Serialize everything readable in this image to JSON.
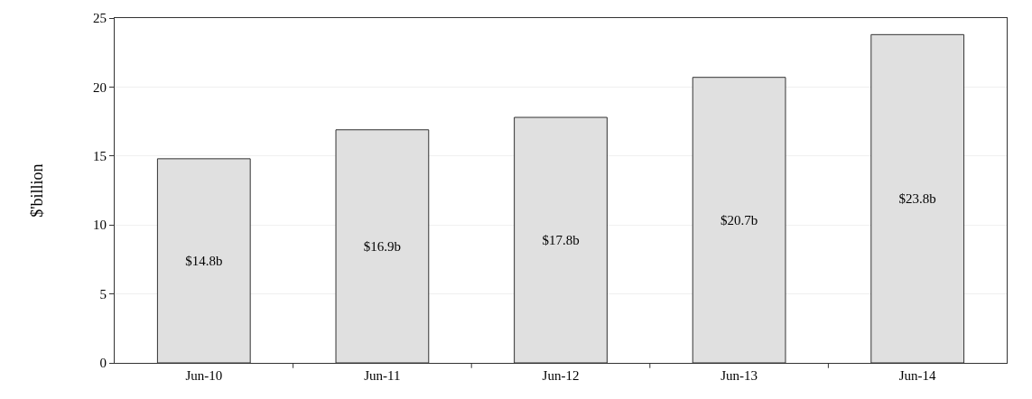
{
  "chart_data": {
    "type": "bar",
    "ylabel": "$'billion",
    "categories": [
      "Jun-10",
      "Jun-11",
      "Jun-12",
      "Jun-13",
      "Jun-14"
    ],
    "values": [
      14.8,
      16.9,
      17.8,
      20.7,
      23.8
    ],
    "value_labels": [
      "$14.8b",
      "$16.9b",
      "$17.8b",
      "$20.7b",
      "$23.8b"
    ],
    "color": "#e0e0e0",
    "ylim": [
      0,
      25
    ],
    "yticks": [
      0,
      5,
      10,
      15,
      20,
      25
    ],
    "grid": "y"
  }
}
